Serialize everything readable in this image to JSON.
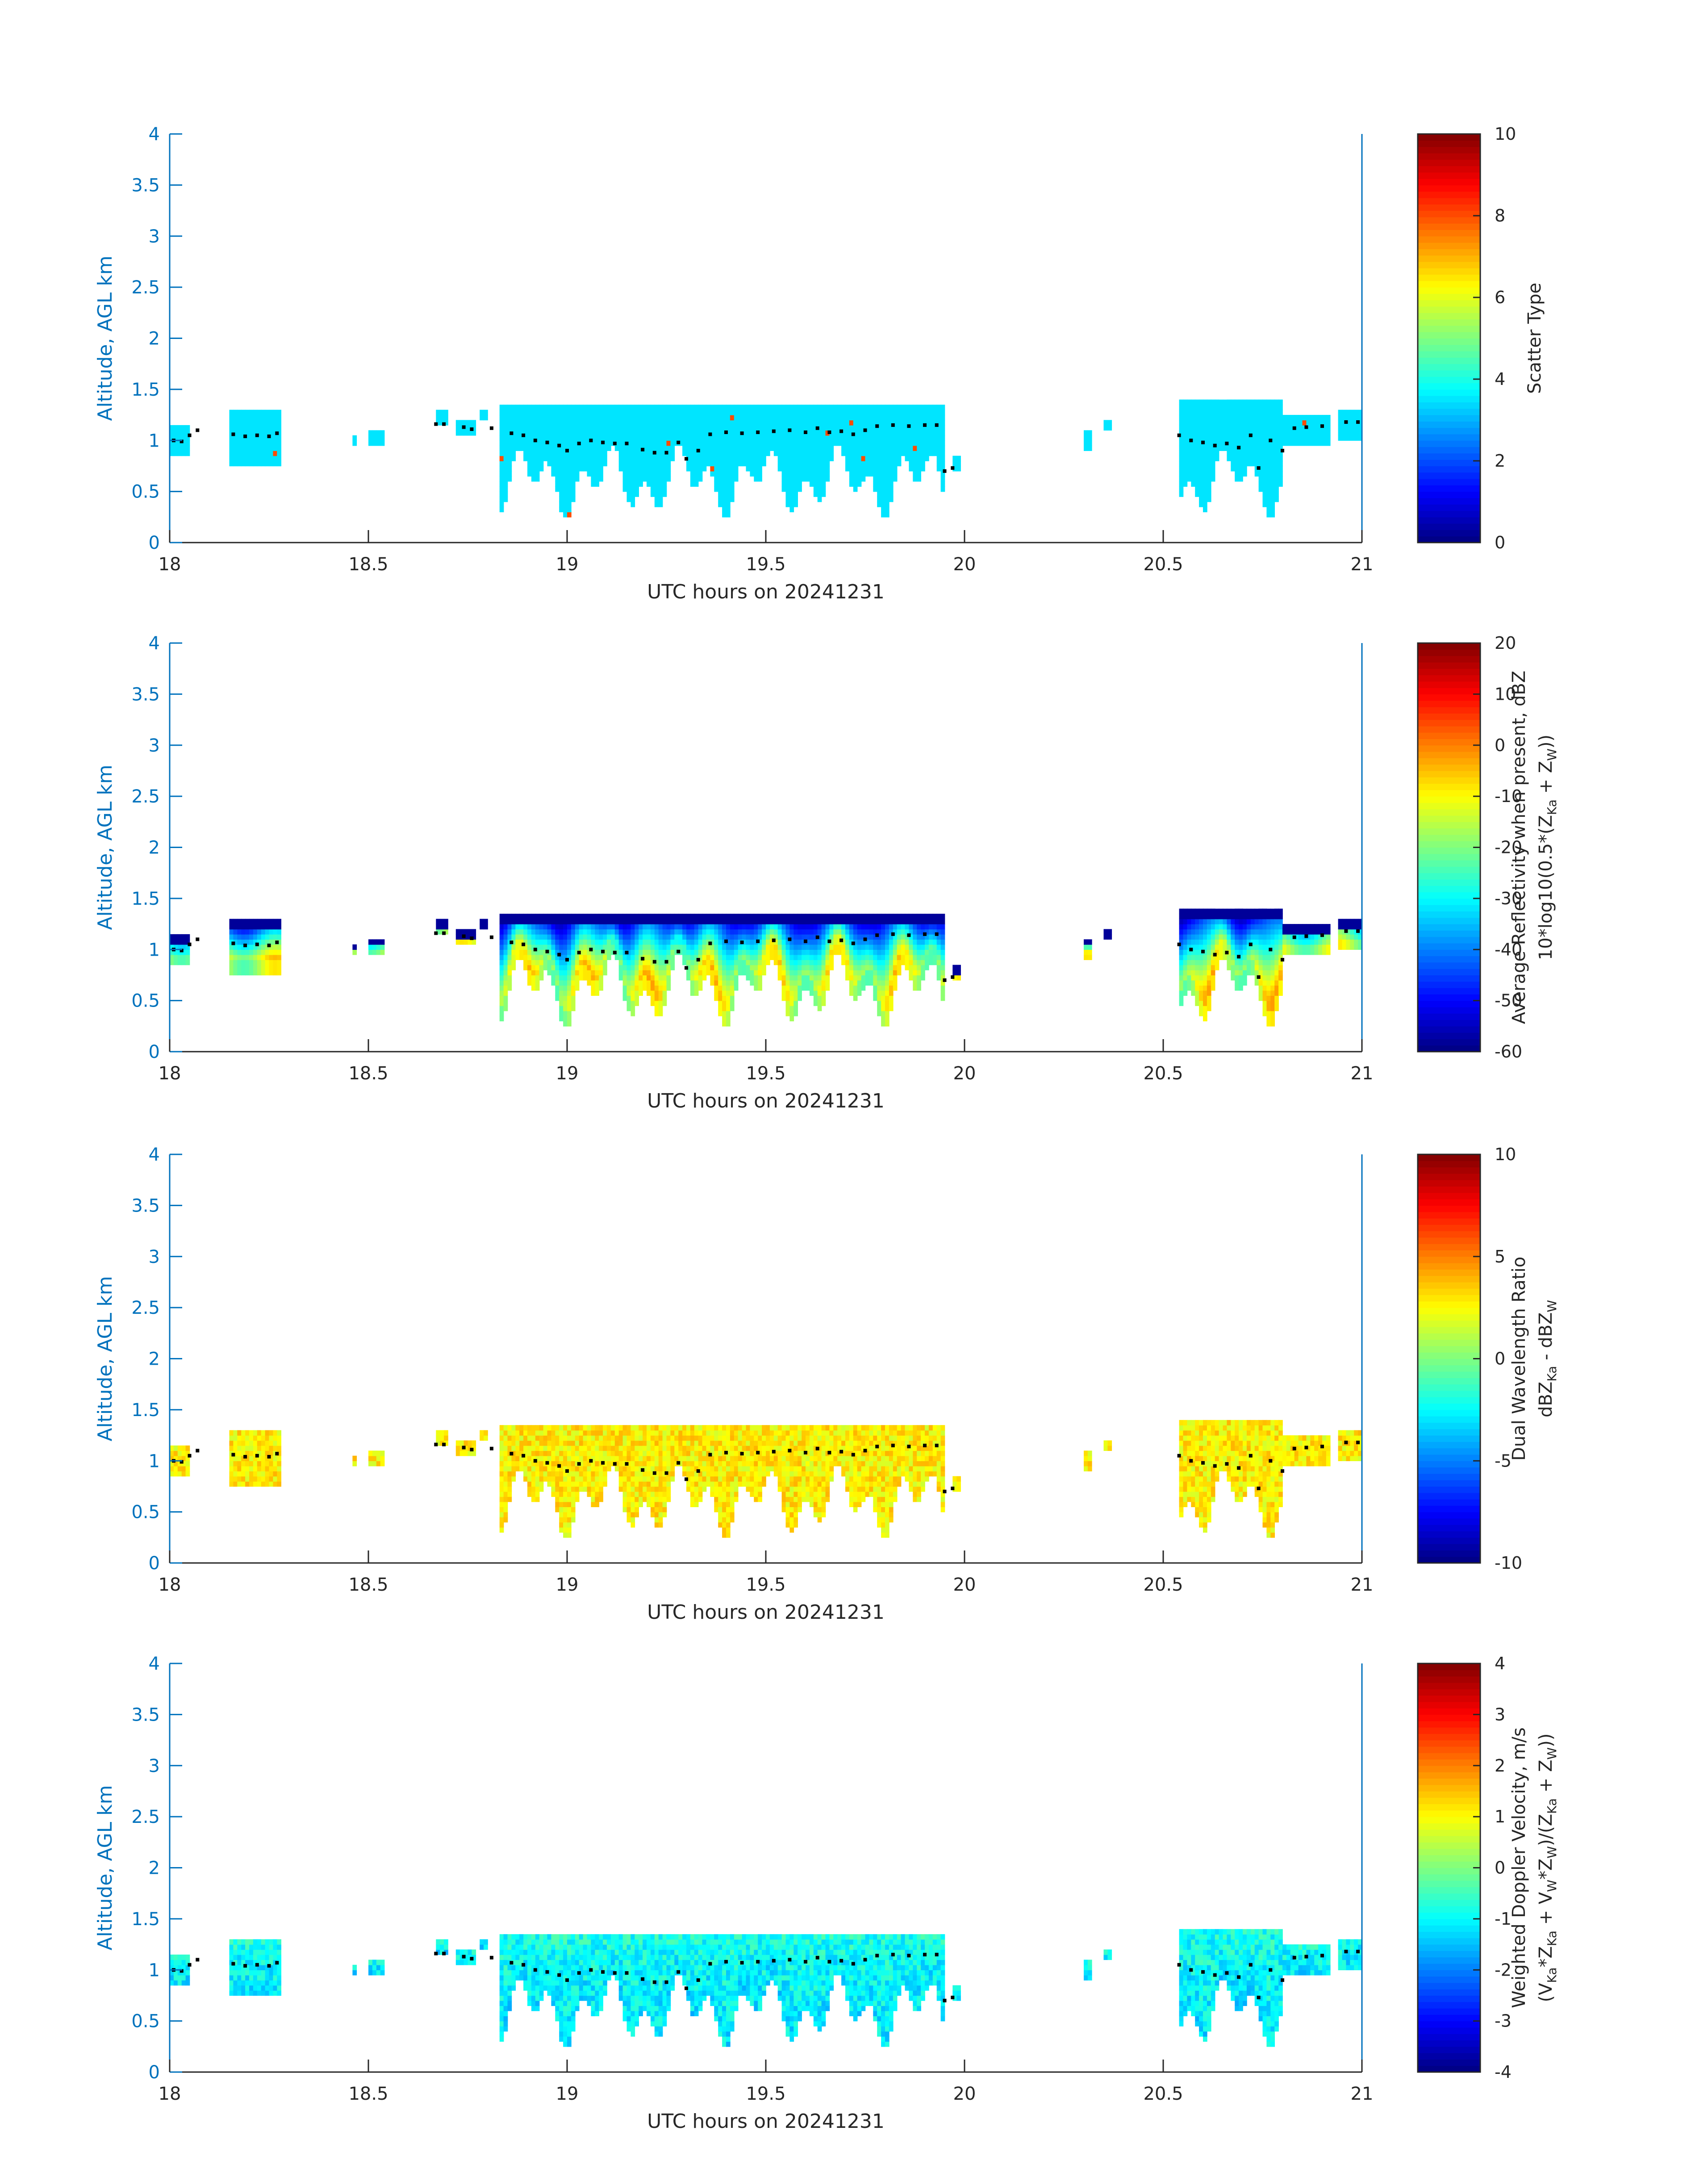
{
  "chart_data": [
    {
      "type": "heatmap",
      "xlabel": "UTC hours on 20241231",
      "ylabel": "Altitude, AGL km",
      "xlim": [
        18,
        21
      ],
      "ylim": [
        0,
        4
      ],
      "xticks": [
        "18",
        "18.5",
        "19",
        "19.5",
        "20",
        "20.5",
        "21"
      ],
      "yticks": [
        "0",
        "0.5",
        "1",
        "1.5",
        "2",
        "2.5",
        "3",
        "3.5",
        "4"
      ],
      "colorbar": {
        "label": [
          "Scatter Type"
        ],
        "range": [
          0,
          10
        ],
        "ticks": [
          "0",
          "2",
          "4",
          "6",
          "8",
          "10"
        ],
        "colormap": "jet"
      },
      "field": "scatter",
      "cloud_top_km": 1.35,
      "dominant_value": 3.5
    },
    {
      "type": "heatmap",
      "xlabel": "UTC hours on 20241231",
      "ylabel": "Altitude, AGL km",
      "xlim": [
        18,
        21
      ],
      "ylim": [
        0,
        4
      ],
      "xticks": [
        "18",
        "18.5",
        "19",
        "19.5",
        "20",
        "20.5",
        "21"
      ],
      "yticks": [
        "0",
        "0.5",
        "1",
        "1.5",
        "2",
        "2.5",
        "3",
        "3.5",
        "4"
      ],
      "colorbar": {
        "label": [
          "Average Reflectivity when present, dBZ",
          "10*log10(0.5*(Z",
          "Ka",
          " + Z",
          "W",
          "))"
        ],
        "range": [
          -60,
          20
        ],
        "ticks": [
          "-60",
          "-50",
          "-40",
          "-30",
          "-20",
          "-10",
          "0",
          "10",
          "20"
        ],
        "colormap": "jet"
      },
      "field": "reflectivity",
      "value_range_in_cloud": [
        -55,
        0
      ]
    },
    {
      "type": "heatmap",
      "xlabel": "UTC hours on 20241231",
      "ylabel": "Altitude, AGL km",
      "xlim": [
        18,
        21
      ],
      "ylim": [
        0,
        4
      ],
      "xticks": [
        "18",
        "18.5",
        "19",
        "19.5",
        "20",
        "20.5",
        "21"
      ],
      "yticks": [
        "0",
        "0.5",
        "1",
        "1.5",
        "2",
        "2.5",
        "3",
        "3.5",
        "4"
      ],
      "colorbar": {
        "label": [
          "Dual Wavelength Ratio",
          "dBZ",
          "Ka",
          " - dBZ",
          "W"
        ],
        "range": [
          -10,
          10
        ],
        "ticks": [
          "-10",
          "-5",
          "0",
          "5",
          "10"
        ],
        "colormap": "jet"
      },
      "field": "dwr",
      "value_range_in_cloud": [
        0,
        4
      ]
    },
    {
      "type": "heatmap",
      "xlabel": "UTC hours on 20241231",
      "ylabel": "Altitude, AGL km",
      "xlim": [
        18,
        21
      ],
      "ylim": [
        0,
        4
      ],
      "xticks": [
        "18",
        "18.5",
        "19",
        "19.5",
        "20",
        "20.5",
        "21"
      ],
      "yticks": [
        "0",
        "0.5",
        "1",
        "1.5",
        "2",
        "2.5",
        "3",
        "3.5",
        "4"
      ],
      "colorbar": {
        "label": [
          "Weighted Doppler Velocity, m/s",
          "(V",
          "Ka",
          "*Z",
          "Ka",
          " + V",
          "W",
          "*Z",
          "W",
          ")/(Z",
          "Ka",
          " + Z",
          "W",
          "))"
        ],
        "range": [
          -4,
          4
        ],
        "ticks": [
          "-4",
          "-3",
          "-2",
          "-1",
          "0",
          "1",
          "2",
          "3",
          "4"
        ],
        "colormap": "jet"
      },
      "field": "velocity",
      "value_range_in_cloud": [
        -1.5,
        0
      ]
    }
  ],
  "cloud_segments_hours": [
    {
      "start": 18.0,
      "end": 18.05,
      "top_km": 1.15,
      "base_km": 0.85
    },
    {
      "start": 18.15,
      "end": 18.28,
      "top_km": 1.3,
      "base_km": 0.75
    },
    {
      "start": 18.46,
      "end": 18.47,
      "top_km": 1.05,
      "base_km": 0.95
    },
    {
      "start": 18.5,
      "end": 18.54,
      "top_km": 1.1,
      "base_km": 0.95
    },
    {
      "start": 18.67,
      "end": 18.7,
      "top_km": 1.3,
      "base_km": 1.15
    },
    {
      "start": 18.72,
      "end": 18.77,
      "top_km": 1.2,
      "base_km": 1.05
    },
    {
      "start": 18.78,
      "end": 18.8,
      "top_km": 1.3,
      "base_km": 1.2
    },
    {
      "start": 18.83,
      "end": 19.95,
      "top_km": 1.35,
      "base_km": 0.2
    },
    {
      "start": 19.97,
      "end": 19.99,
      "top_km": 0.85,
      "base_km": 0.7
    },
    {
      "start": 20.3,
      "end": 20.32,
      "top_km": 1.1,
      "base_km": 0.9
    },
    {
      "start": 20.35,
      "end": 20.37,
      "top_km": 1.2,
      "base_km": 1.1
    },
    {
      "start": 20.54,
      "end": 20.8,
      "top_km": 1.38,
      "base_km": 0.2
    },
    {
      "start": 20.8,
      "end": 20.92,
      "top_km": 1.25,
      "base_km": 0.95
    },
    {
      "start": 20.94,
      "end": 21.0,
      "top_km": 1.3,
      "base_km": 1.0
    }
  ],
  "cloud_base_dots": [
    [
      18.01,
      1.0
    ],
    [
      18.03,
      0.99
    ],
    [
      18.05,
      1.05
    ],
    [
      18.07,
      1.1
    ],
    [
      18.16,
      1.06
    ],
    [
      18.19,
      1.04
    ],
    [
      18.22,
      1.05
    ],
    [
      18.25,
      1.04
    ],
    [
      18.27,
      1.07
    ],
    [
      18.67,
      1.16
    ],
    [
      18.69,
      1.16
    ],
    [
      18.74,
      1.13
    ],
    [
      18.76,
      1.11
    ],
    [
      18.81,
      1.12
    ],
    [
      18.86,
      1.07
    ],
    [
      18.89,
      1.05
    ],
    [
      18.92,
      1.0
    ],
    [
      18.95,
      0.98
    ],
    [
      18.98,
      0.95
    ],
    [
      19.0,
      0.9
    ],
    [
      19.03,
      0.97
    ],
    [
      19.06,
      1.0
    ],
    [
      19.09,
      0.98
    ],
    [
      19.12,
      0.97
    ],
    [
      19.15,
      0.97
    ],
    [
      19.19,
      0.91
    ],
    [
      19.22,
      0.88
    ],
    [
      19.25,
      0.88
    ],
    [
      19.28,
      0.98
    ],
    [
      19.3,
      0.82
    ],
    [
      19.33,
      0.9
    ],
    [
      19.36,
      1.06
    ],
    [
      19.4,
      1.08
    ],
    [
      19.44,
      1.07
    ],
    [
      19.48,
      1.08
    ],
    [
      19.52,
      1.09
    ],
    [
      19.56,
      1.1
    ],
    [
      19.6,
      1.08
    ],
    [
      19.63,
      1.12
    ],
    [
      19.66,
      1.08
    ],
    [
      19.69,
      1.09
    ],
    [
      19.72,
      1.06
    ],
    [
      19.75,
      1.1
    ],
    [
      19.78,
      1.14
    ],
    [
      19.82,
      1.15
    ],
    [
      19.86,
      1.14
    ],
    [
      19.9,
      1.15
    ],
    [
      19.93,
      1.15
    ],
    [
      19.95,
      0.7
    ],
    [
      19.97,
      0.73
    ],
    [
      20.54,
      1.05
    ],
    [
      20.57,
      1.0
    ],
    [
      20.6,
      0.98
    ],
    [
      20.63,
      0.95
    ],
    [
      20.66,
      0.97
    ],
    [
      20.69,
      0.93
    ],
    [
      20.72,
      1.05
    ],
    [
      20.74,
      0.73
    ],
    [
      20.77,
      1.0
    ],
    [
      20.8,
      0.9
    ],
    [
      20.83,
      1.12
    ],
    [
      20.86,
      1.13
    ],
    [
      20.9,
      1.14
    ],
    [
      20.96,
      1.18
    ],
    [
      20.99,
      1.18
    ]
  ]
}
